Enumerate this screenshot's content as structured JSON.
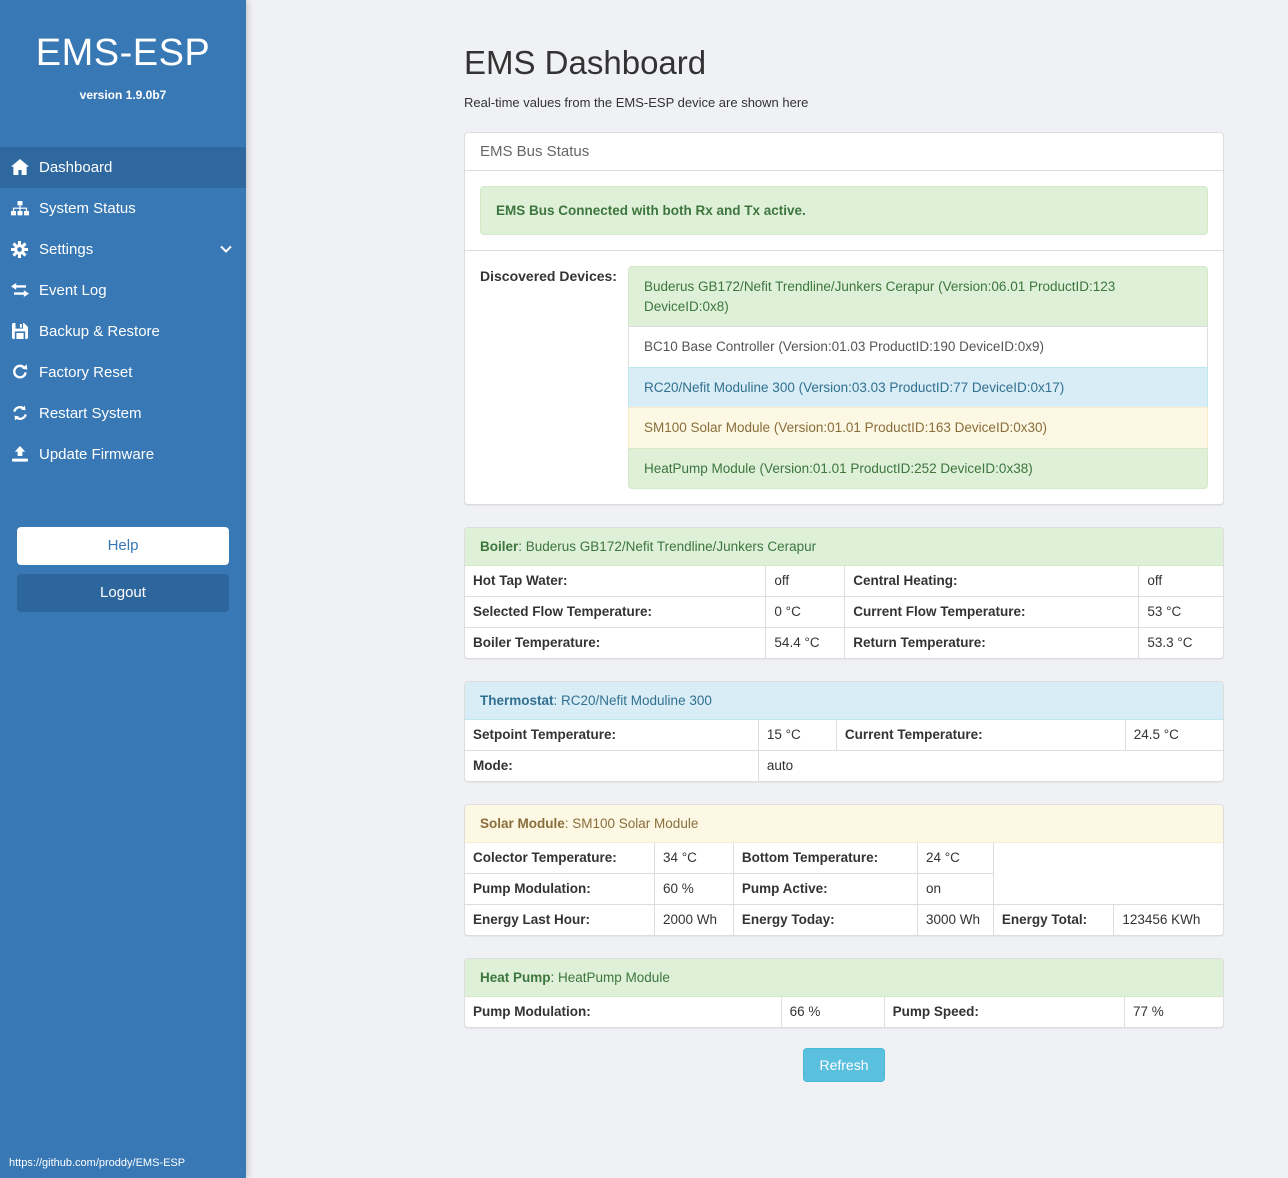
{
  "colors": {
    "sidebar": "#3878b5",
    "sidebar_active": "#2f689e",
    "logout": "#2d669c",
    "refresh": "#5bc0de",
    "refresh_border": "#46b8da"
  },
  "variants": {
    "success": {
      "bg": "#dff0d8",
      "border": "#d6e9c6",
      "text": "#3c763d"
    },
    "info": {
      "bg": "#d9edf7",
      "border": "#bce8f1",
      "text": "#31708f"
    },
    "warning": {
      "bg": "#fcf8e3",
      "border": "#faebcc",
      "text": "#8a6d3b"
    },
    "default": {
      "bg": "#ffffff",
      "border": "#dddddd",
      "text": "#555555"
    }
  },
  "sidebar": {
    "brand": "EMS-ESP",
    "version": "version 1.9.0b7",
    "nav": [
      {
        "label": "Dashboard",
        "icon": "home-icon",
        "active": true
      },
      {
        "label": "System Status",
        "icon": "sitemap-icon",
        "active": false
      },
      {
        "label": "Settings",
        "icon": "gear-icon",
        "active": false,
        "chevron": true
      },
      {
        "label": "Event Log",
        "icon": "exchange-icon",
        "active": false
      },
      {
        "label": "Backup & Restore",
        "icon": "save-icon",
        "active": false
      },
      {
        "label": "Factory Reset",
        "icon": "refresh-icon",
        "active": false
      },
      {
        "label": "Restart System",
        "icon": "sync-icon",
        "active": false
      },
      {
        "label": "Update Firmware",
        "icon": "upload-icon",
        "active": false
      }
    ],
    "help_label": "Help",
    "logout_label": "Logout",
    "footer_link": "https://github.com/proddy/EMS-ESP"
  },
  "header": {
    "title": "EMS Dashboard",
    "subtitle": "Real-time values from the EMS-ESP device are shown here"
  },
  "bus_panel": {
    "heading": "EMS Bus Status",
    "alert": "EMS Bus Connected with both Rx and Tx active.",
    "devices_label": "Discovered Devices:",
    "devices": [
      {
        "text": "Buderus GB172/Nefit Trendline/Junkers Cerapur (Version:06.01 ProductID:123 DeviceID:0x8)",
        "variant": "success"
      },
      {
        "text": "BC10 Base Controller (Version:01.03 ProductID:190 DeviceID:0x9)",
        "variant": "default"
      },
      {
        "text": "RC20/Nefit Moduline 300 (Version:03.03 ProductID:77 DeviceID:0x17)",
        "variant": "info"
      },
      {
        "text": "SM100 Solar Module (Version:01.01 ProductID:163 DeviceID:0x30)",
        "variant": "warning"
      },
      {
        "text": "HeatPump Module (Version:01.01 ProductID:252 DeviceID:0x38)",
        "variant": "success"
      }
    ]
  },
  "device_panels": [
    {
      "variant": "success",
      "name": "Boiler",
      "model": "Buderus GB172/Nefit Trendline/Junkers Cerapur",
      "rows": [
        [
          [
            "Hot Tap Water:",
            "off"
          ],
          [
            "Central Heating:",
            "off"
          ]
        ],
        [
          [
            "Selected Flow Temperature:",
            "0 °C"
          ],
          [
            "Current Flow Temperature:",
            "53 °C"
          ]
        ],
        [
          [
            "Boiler Temperature:",
            "54.4 °C"
          ],
          [
            "Return Temperature:",
            "53.3 °C"
          ]
        ]
      ]
    },
    {
      "variant": "info",
      "name": "Thermostat",
      "model": "RC20/Nefit Moduline 300",
      "rows": [
        [
          [
            "Setpoint Temperature:",
            "15 °C"
          ],
          [
            "Current Temperature:",
            "24.5 °C"
          ]
        ],
        [
          [
            "Mode:",
            "auto"
          ]
        ]
      ]
    },
    {
      "variant": "warning",
      "name": "Solar Module",
      "model": "SM100 Solar Module",
      "rows": [
        [
          [
            "Colector Temperature:",
            "34 °C"
          ],
          [
            "Bottom Temperature:",
            "24 °C"
          ]
        ],
        [
          [
            "Pump Modulation:",
            "60 %"
          ],
          [
            "Pump Active:",
            "on"
          ]
        ],
        [
          [
            "Energy Last Hour:",
            "2000 Wh"
          ],
          [
            "Energy Today:",
            "3000 Wh"
          ],
          [
            "Energy Total:",
            "123456 KWh"
          ]
        ]
      ]
    },
    {
      "variant": "success",
      "name": "Heat Pump",
      "model": "HeatPump Module",
      "rows": [
        [
          [
            "Pump Modulation:",
            "66 %"
          ],
          [
            "Pump Speed:",
            "77 %"
          ]
        ]
      ]
    }
  ],
  "refresh_label": "Refresh"
}
